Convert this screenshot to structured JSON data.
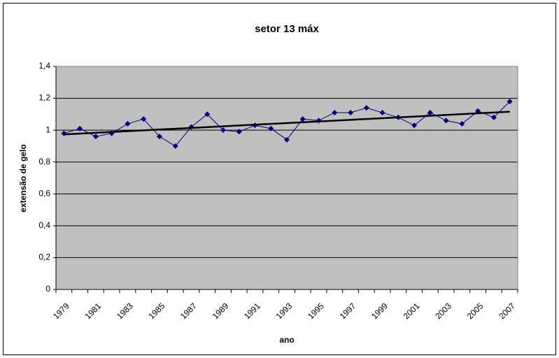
{
  "chart_data": {
    "type": "line",
    "title": "setor 13 máx",
    "x_label": "ano",
    "y_label": "extensão de gelo",
    "categories": [
      "1979",
      null,
      "1981",
      null,
      "1983",
      null,
      "1985",
      null,
      "1987",
      null,
      "1989",
      null,
      "1991",
      null,
      "1993",
      null,
      "1995",
      null,
      "1997",
      null,
      "1999",
      null,
      "2001",
      null,
      "2003",
      null,
      "2005",
      null,
      "2007"
    ],
    "series": [
      {
        "name": "setor 13",
        "color": "#000080",
        "values": [
          0.98,
          1.01,
          0.96,
          0.98,
          1.04,
          1.07,
          0.96,
          0.9,
          1.02,
          1.1,
          1.0,
          0.99,
          1.03,
          1.01,
          0.94,
          1.07,
          1.06,
          1.11,
          1.11,
          1.14,
          1.11,
          1.08,
          1.03,
          1.11,
          1.06,
          1.04,
          1.12,
          1.08,
          1.18
        ]
      }
    ],
    "trendline": "linear",
    "trendline_color": "#000000",
    "ylim": [
      0,
      1.4
    ],
    "yticks": [
      0,
      {
        "value": 0.2,
        "label": "0,2"
      },
      {
        "value": 0.4,
        "label": "0,4"
      },
      {
        "value": 0.6,
        "label": "0,6"
      },
      {
        "value": 0.8,
        "label": "0,8"
      },
      1,
      {
        "value": 1.2,
        "label": "1,2"
      },
      {
        "value": 1.4,
        "label": "1,4"
      }
    ],
    "grid": true,
    "plot_background": "#c0c0c0"
  }
}
